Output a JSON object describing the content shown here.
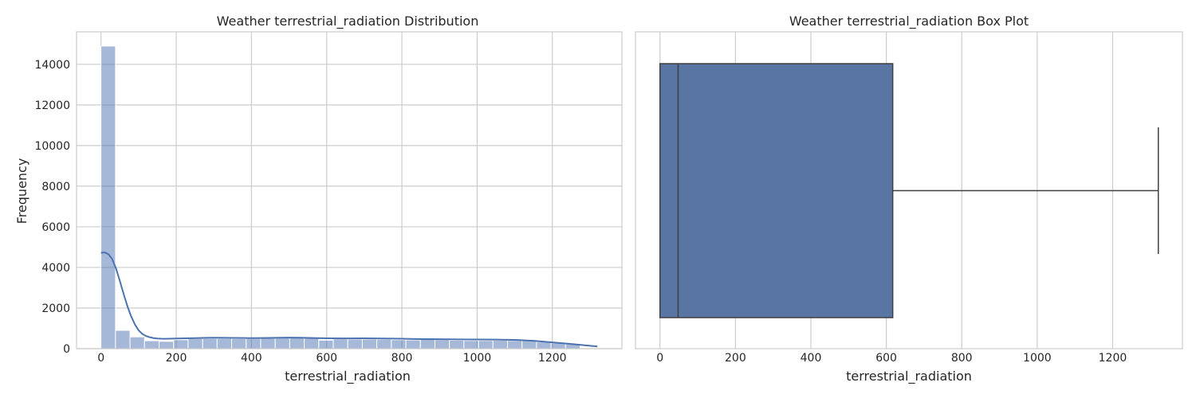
{
  "chart_data": [
    {
      "type": "bar",
      "title": "Weather terrestrial_radiation Distribution",
      "xlabel": "terrestrial_radiation",
      "ylabel": "Frequency",
      "xlim": [
        -65,
        1385
      ],
      "ylim": [
        0,
        15600
      ],
      "xticks": [
        0,
        200,
        400,
        600,
        800,
        1000,
        1200
      ],
      "yticks": [
        0,
        2000,
        4000,
        6000,
        8000,
        10000,
        12000,
        14000
      ],
      "grid": true,
      "bar_color": "#4c72b0",
      "bar_opacity": 0.5,
      "bins": {
        "width": 38.6,
        "starts": [
          0,
          38.6,
          77.2,
          115.8,
          154.4,
          193.0,
          231.6,
          270.2,
          308.8,
          347.4,
          386.0,
          424.6,
          463.2,
          501.8,
          540.4,
          579.0,
          617.6,
          656.2,
          694.8,
          733.4,
          772.0,
          810.6,
          849.2,
          887.8,
          926.4,
          965.0,
          1003.6,
          1042.2,
          1080.8,
          1119.4,
          1158.0,
          1196.6,
          1235.2
        ],
        "counts": [
          14900,
          900,
          580,
          390,
          360,
          440,
          500,
          500,
          500,
          490,
          500,
          510,
          520,
          530,
          520,
          420,
          480,
          470,
          470,
          460,
          440,
          430,
          450,
          440,
          410,
          400,
          400,
          410,
          400,
          390,
          330,
          280,
          250
        ]
      },
      "kde": {
        "color": "#4c72b0",
        "x": [
          0,
          10,
          20,
          30,
          40,
          50,
          60,
          70,
          80,
          90,
          100,
          110,
          120,
          130,
          140,
          150,
          160,
          170,
          180,
          190,
          200,
          250,
          300,
          350,
          400,
          450,
          500,
          550,
          600,
          650,
          700,
          750,
          800,
          850,
          900,
          950,
          1000,
          1050,
          1100,
          1150,
          1200,
          1250,
          1300,
          1320
        ],
        "y": [
          4720,
          4740,
          4650,
          4400,
          3950,
          3350,
          2700,
          2100,
          1600,
          1200,
          900,
          720,
          620,
          560,
          520,
          500,
          490,
          485,
          490,
          495,
          500,
          520,
          540,
          530,
          520,
          530,
          545,
          530,
          510,
          505,
          510,
          500,
          490,
          470,
          465,
          455,
          450,
          445,
          430,
          390,
          310,
          230,
          140,
          110
        ]
      }
    },
    {
      "type": "box",
      "title": "Weather terrestrial_radiation Box Plot",
      "xlabel": "terrestrial_radiation",
      "xlim": [
        -65,
        1385
      ],
      "xticks": [
        0,
        200,
        400,
        600,
        800,
        1000,
        1200
      ],
      "grid": true,
      "box_color": "#5975a4",
      "line_color": "#3f3f3f",
      "stats": {
        "whisker_low": 0,
        "q1": 0,
        "median": 48,
        "q3": 617,
        "whisker_high": 1321
      }
    }
  ]
}
